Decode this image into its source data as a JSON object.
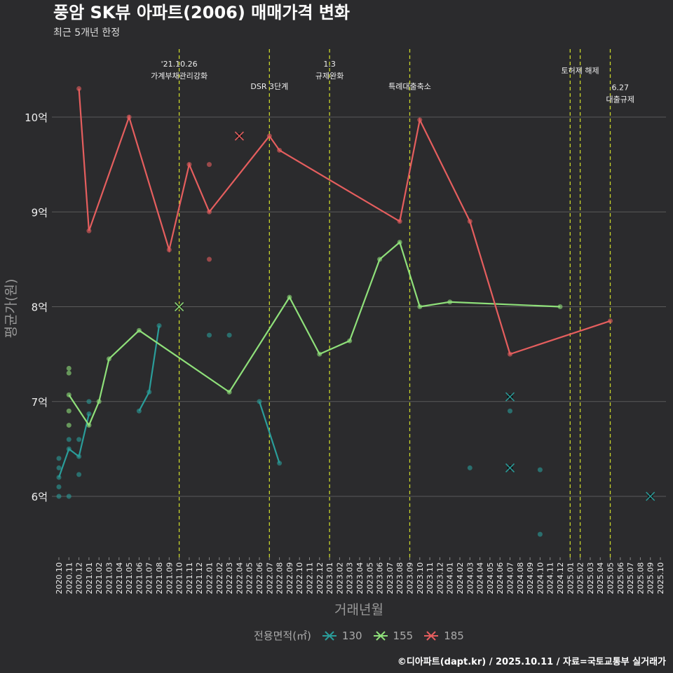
{
  "title": "풍암 SK뷰 아파트(2006) 매매가격 변화",
  "subtitle": "최근 5개년 한정",
  "footer": "©디아파트(dapt.kr) / 2025.10.11 / 자료=국토교통부 실거래가",
  "chart_data": {
    "type": "line",
    "title": "풍암 SK뷰 아파트(2006) 매매가격 변화",
    "xlabel": "거래년월",
    "ylabel": "평균가(원)",
    "ylim": [
      5.4,
      10.95
    ],
    "yticks": [
      6,
      7,
      8,
      9,
      10
    ],
    "ytick_labels": [
      "6억",
      "7억",
      "8억",
      "9억",
      "10억"
    ],
    "x_categories": [
      "2020.10",
      "2020.11",
      "2020.12",
      "2021.01",
      "2021.02",
      "2021.03",
      "2021.04",
      "2021.05",
      "2021.06",
      "2021.07",
      "2021.08",
      "2021.09",
      "2021.10",
      "2021.11",
      "2021.12",
      "2022.01",
      "2022.02",
      "2022.03",
      "2022.04",
      "2022.05",
      "2022.06",
      "2022.07",
      "2022.08",
      "2022.09",
      "2022.10",
      "2022.11",
      "2022.12",
      "2023.01",
      "2023.02",
      "2023.03",
      "2023.04",
      "2023.05",
      "2023.06",
      "2023.07",
      "2023.08",
      "2023.09",
      "2023.10",
      "2023.11",
      "2023.12",
      "2024.01",
      "2024.02",
      "2024.03",
      "2024.04",
      "2024.05",
      "2024.06",
      "2024.07",
      "2024.08",
      "2024.09",
      "2024.10",
      "2024.11",
      "2024.12",
      "2025.01",
      "2025.02",
      "2025.03",
      "2025.04",
      "2025.05",
      "2025.06",
      "2025.07",
      "2025.08",
      "2025.09",
      "2025.10"
    ],
    "legend": {
      "title": "전용면적(㎡)",
      "placement": "bottom"
    },
    "annotations": [
      {
        "month": 12,
        "lines": [
          "'21.10.26",
          "가계부채관리강화"
        ],
        "row": 0
      },
      {
        "month": 21,
        "lines": [
          "DSR 3단계"
        ],
        "row": 1
      },
      {
        "month": 27,
        "lines": [
          "1.3",
          "규제완화"
        ],
        "row": 0
      },
      {
        "month": 35,
        "lines": [
          "특례대출축소"
        ],
        "row": 1
      },
      {
        "month": 52,
        "lines": [
          "토허제 해제"
        ],
        "row": 0.3
      },
      {
        "month": 56,
        "lines": [
          "6.27",
          "대출규제"
        ],
        "row": 1.05
      }
    ],
    "vlines": [
      12,
      21,
      27,
      35,
      51,
      52,
      55
    ],
    "series": [
      {
        "name": "130",
        "color": "#2a9d9a",
        "lines": [
          [
            [
              0,
              6.2
            ],
            [
              1,
              6.5
            ],
            [
              2,
              6.42
            ],
            [
              3,
              6.87
            ]
          ],
          [
            [
              8,
              6.9
            ],
            [
              9,
              7.1
            ],
            [
              10,
              7.8
            ]
          ],
          [
            [
              20,
              7.0
            ],
            [
              22,
              6.35
            ]
          ]
        ],
        "points": [
          [
            0,
            6.4
          ],
          [
            0,
            6.3
          ],
          [
            0,
            6.1
          ],
          [
            0,
            6.0
          ],
          [
            1,
            6.6
          ],
          [
            1,
            6.0
          ],
          [
            2,
            6.6
          ],
          [
            2,
            6.23
          ],
          [
            3,
            7.0
          ],
          [
            15,
            7.7
          ],
          [
            17,
            7.7
          ],
          [
            41,
            6.3
          ],
          [
            45,
            6.9
          ],
          [
            48,
            6.28
          ],
          [
            48,
            5.6
          ]
        ],
        "cancelled": [
          [
            45,
            7.05
          ],
          [
            45,
            6.3
          ],
          [
            59,
            6.0
          ]
        ]
      },
      {
        "name": "155",
        "color": "#8fe07a",
        "lines": [
          [
            [
              1,
              7.07
            ],
            [
              3,
              6.75
            ],
            [
              4,
              7.0
            ],
            [
              5,
              7.45
            ],
            [
              8,
              7.75
            ],
            [
              17,
              7.1
            ],
            [
              23,
              8.1
            ],
            [
              26,
              7.5
            ],
            [
              29,
              7.64
            ],
            [
              32,
              8.5
            ],
            [
              34,
              8.68
            ],
            [
              36,
              8.0
            ],
            [
              39,
              8.05
            ],
            [
              50,
              8.0
            ]
          ]
        ],
        "points": [
          [
            1,
            7.35
          ],
          [
            1,
            7.3
          ],
          [
            1,
            6.9
          ],
          [
            1,
            6.75
          ]
        ],
        "cancelled": [
          [
            12,
            8.0
          ]
        ]
      },
      {
        "name": "185",
        "color": "#e55e5e",
        "lines": [
          [
            [
              2,
              10.3
            ],
            [
              3,
              8.8
            ],
            [
              7,
              10.0
            ],
            [
              11,
              8.6
            ],
            [
              13,
              9.5
            ],
            [
              15,
              9.0
            ],
            [
              21,
              9.8
            ],
            [
              22,
              9.65
            ],
            [
              34,
              8.9
            ],
            [
              36,
              9.97
            ],
            [
              41,
              8.9
            ],
            [
              45,
              7.5
            ],
            [
              55,
              7.85
            ]
          ]
        ],
        "points": [
          [
            15,
            9.5
          ],
          [
            15,
            8.5
          ]
        ],
        "cancelled": [
          [
            18,
            9.8
          ]
        ]
      }
    ]
  }
}
